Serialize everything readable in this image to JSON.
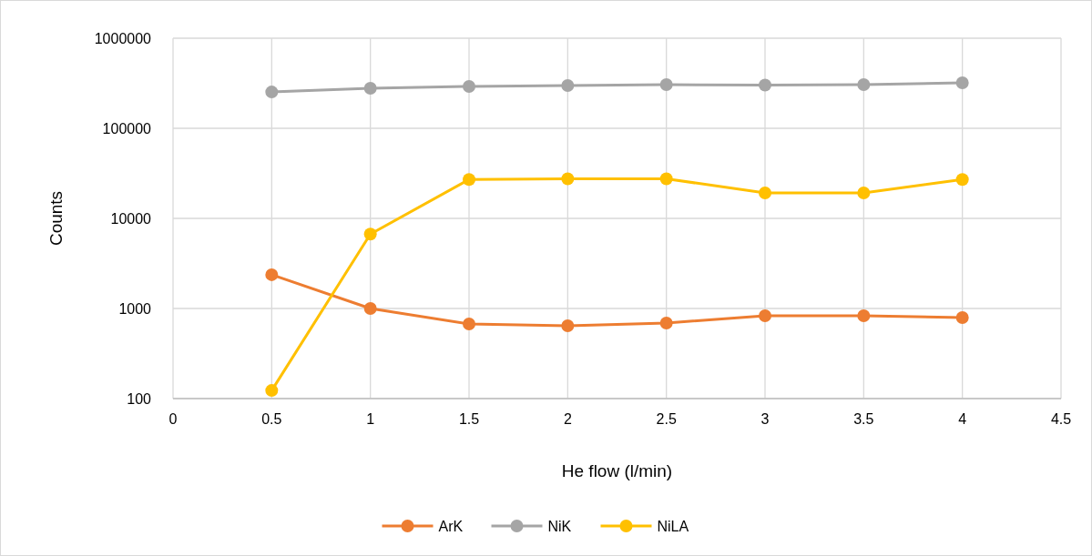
{
  "chart_data": {
    "type": "line",
    "xlabel": "He flow (l/min)",
    "ylabel": "Counts",
    "x": [
      0.5,
      1,
      1.5,
      2,
      2.5,
      3,
      3.5,
      4
    ],
    "series": [
      {
        "name": "ArK",
        "color": "#ed7d31",
        "values": [
          2370,
          1000,
          673,
          643,
          690,
          830,
          830,
          793
        ]
      },
      {
        "name": "NiK",
        "color": "#a5a5a5",
        "values": [
          253000,
          278000,
          292000,
          298000,
          305000,
          302000,
          305000,
          320000
        ]
      },
      {
        "name": "NiLA",
        "color": "#ffc000",
        "values": [
          123,
          6700,
          27000,
          27500,
          27500,
          19200,
          19200,
          27000
        ]
      }
    ],
    "xlim": [
      0,
      4.5
    ],
    "xticks": [
      0,
      0.5,
      1,
      1.5,
      2,
      2.5,
      3,
      3.5,
      4,
      4.5
    ],
    "ylim": [
      100,
      1000000
    ],
    "yticks": [
      100,
      1000,
      10000,
      100000,
      1000000
    ],
    "log": "y",
    "grid": true,
    "legend": "bottom",
    "marker": "circle",
    "line_style": "solid"
  }
}
